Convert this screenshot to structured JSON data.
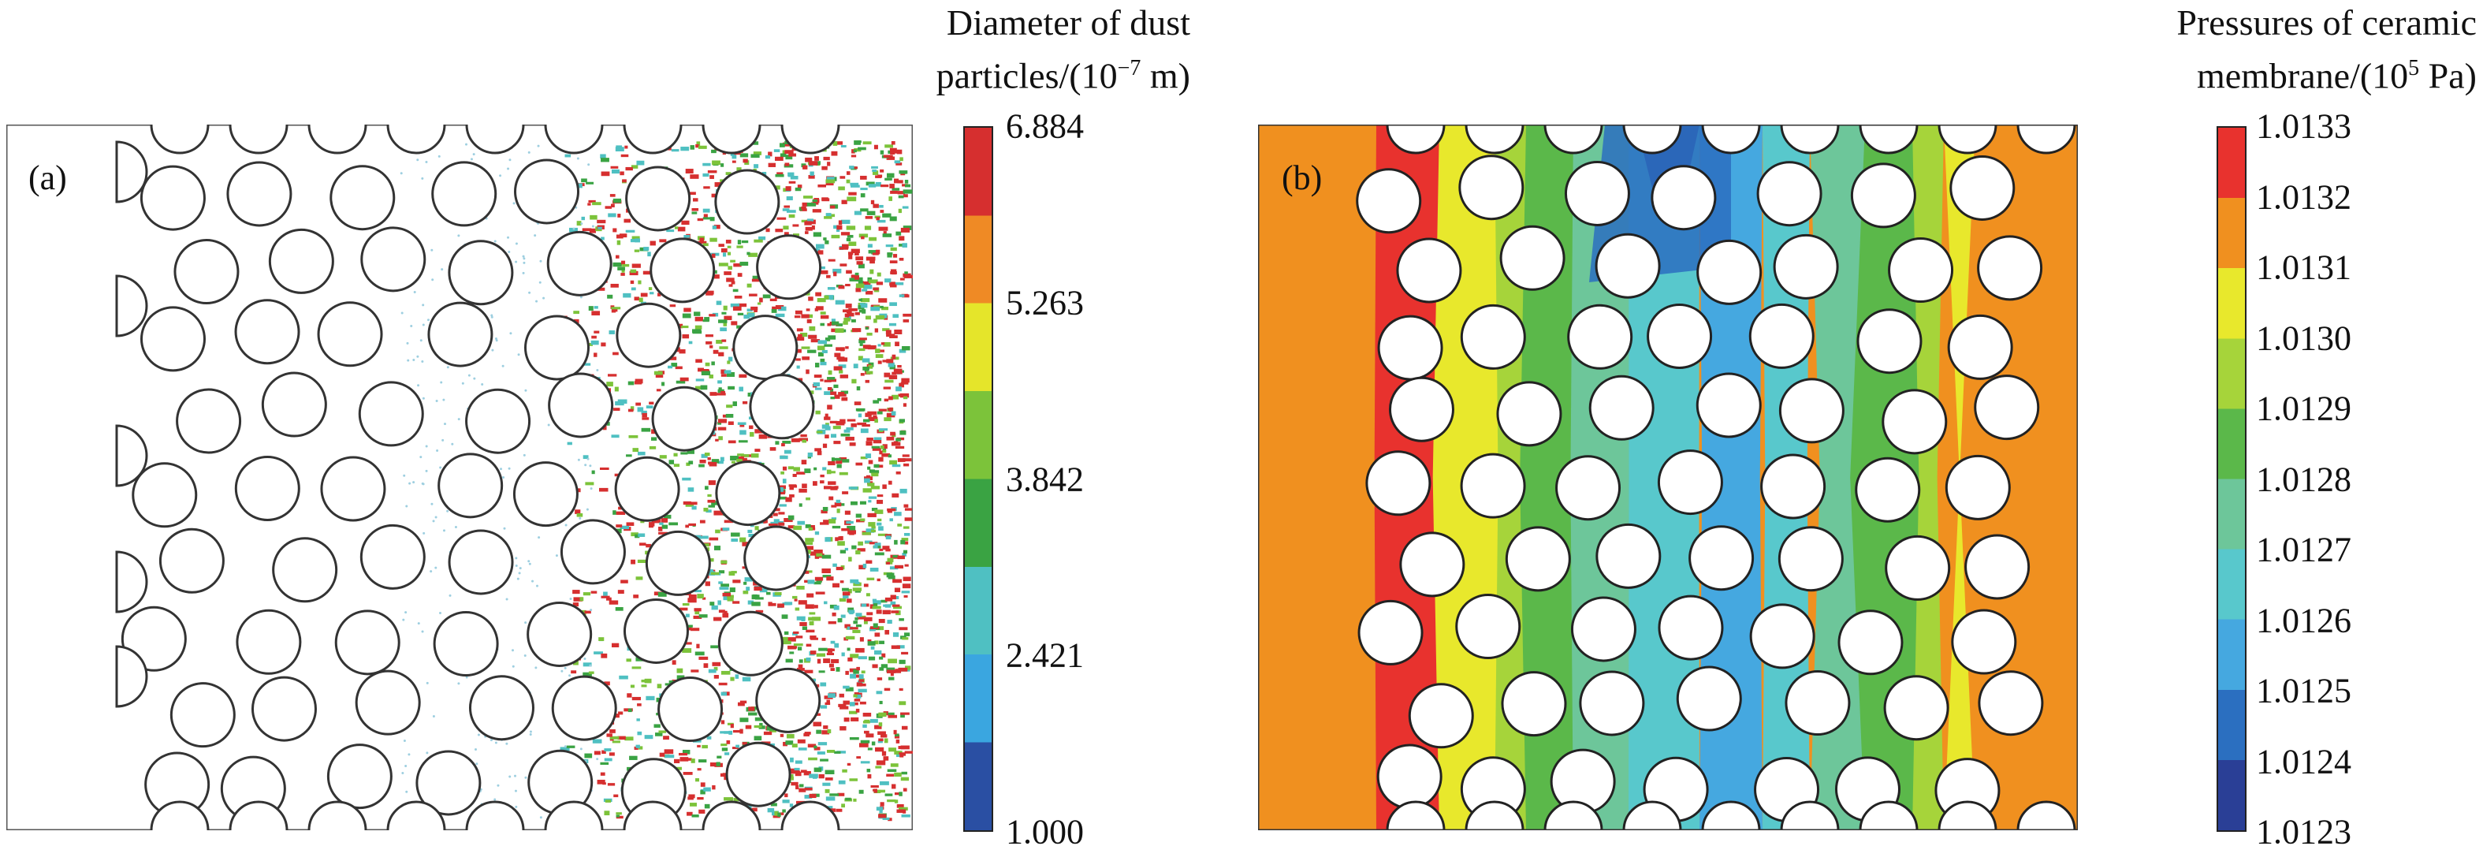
{
  "figure": {
    "panels": [
      {
        "label": "(a)",
        "colorbar": {
          "title_line1": "Diameter of dust",
          "title_line2": "particles/(10",
          "title_line2_sup": "−7",
          "title_line2_end": " m)",
          "ticks": [
            "6.884",
            "5.263",
            "3.842",
            "2.421",
            "1.000"
          ],
          "colors": [
            "#d62f2f",
            "#ef8a25",
            "#e5e52a",
            "#7cc33a",
            "#3aa343",
            "#4fc0c2",
            "#3aa6e0",
            "#2a4fa3"
          ]
        }
      },
      {
        "label": "(b)",
        "colorbar": {
          "title_line1": "Pressures of ceramic",
          "title_line2": "membrane/(10",
          "title_line2_sup": "5",
          "title_line2_end": " Pa)",
          "ticks": [
            "1.0133",
            "1.0132",
            "1.0131",
            "1.0130",
            "1.0129",
            "1.0128",
            "1.0127",
            "1.0126",
            "1.0125",
            "1.0124",
            "1.0123"
          ],
          "colors": [
            "#e8322e",
            "#f0901f",
            "#e8e82c",
            "#a6d43a",
            "#5bb84a",
            "#6dc69a",
            "#58c8cc",
            "#45a8e0",
            "#2b6fc0",
            "#2a3f96"
          ]
        }
      }
    ]
  }
}
